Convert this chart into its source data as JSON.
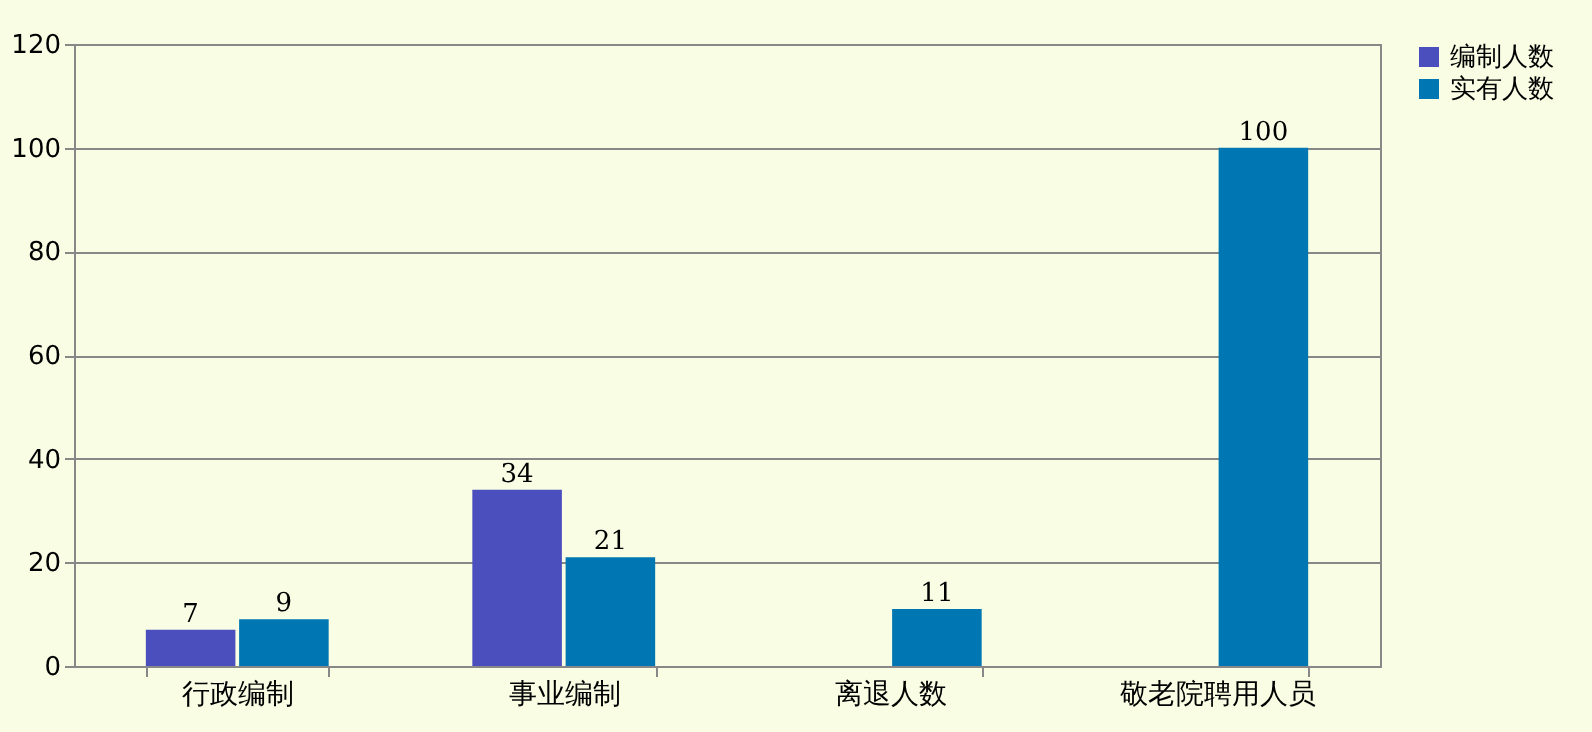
{
  "chart_data": {
    "type": "bar",
    "categories": [
      "行政编制",
      "事业编制",
      "离退人数",
      "敬老院聘用人员"
    ],
    "series": [
      {
        "name": "编制人数",
        "color": "#4b4fbe",
        "values": [
          7,
          34,
          null,
          null
        ]
      },
      {
        "name": "实有人数",
        "color": "#0077b3",
        "values": [
          9,
          21,
          11,
          100
        ]
      }
    ],
    "ylim": [
      0,
      120
    ],
    "yticks": [
      0,
      20,
      40,
      60,
      80,
      100,
      120
    ],
    "grid": "y",
    "legend": "right",
    "data_labels": true
  }
}
